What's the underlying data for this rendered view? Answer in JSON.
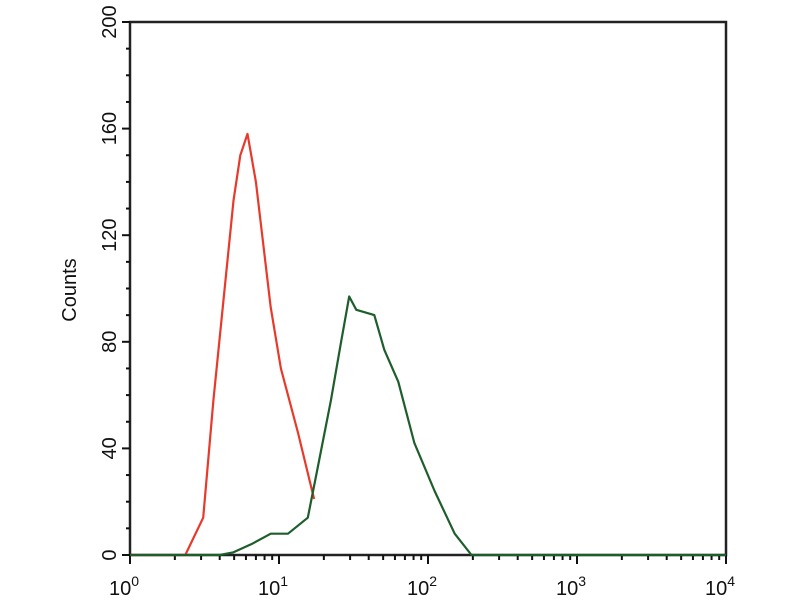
{
  "chart_data": {
    "type": "line",
    "title": "",
    "xlabel": "",
    "ylabel": "Counts",
    "x_scale": "log",
    "xlim": [
      1,
      10000
    ],
    "ylim": [
      0,
      200
    ],
    "grid": false,
    "y_ticks": [
      "0",
      "40",
      "80",
      "120",
      "160",
      "200"
    ],
    "x_ticks": [
      {
        "base": "10",
        "exp": "0"
      },
      {
        "base": "10",
        "exp": "1"
      },
      {
        "base": "10",
        "exp": "2"
      },
      {
        "base": "10",
        "exp": "3"
      },
      {
        "base": "10",
        "exp": "4"
      }
    ],
    "series": [
      {
        "color": "#e8392b",
        "points": [
          [
            1,
            0
          ],
          [
            2.35,
            0
          ],
          [
            3.1,
            14
          ],
          [
            3.63,
            58
          ],
          [
            4.95,
            133
          ],
          [
            5.5,
            150
          ],
          [
            6.15,
            158
          ],
          [
            7.0,
            140
          ],
          [
            8.8,
            93
          ],
          [
            10.3,
            70
          ],
          [
            13.4,
            46
          ],
          [
            17.2,
            21
          ]
        ]
      },
      {
        "color": "#1e5e2c",
        "points": [
          [
            1,
            0
          ],
          [
            4.0,
            0
          ],
          [
            4.95,
            1
          ],
          [
            6.5,
            4
          ],
          [
            8.8,
            8
          ],
          [
            11.5,
            8
          ],
          [
            15.6,
            14
          ],
          [
            18.2,
            33
          ],
          [
            22.3,
            58
          ],
          [
            26.1,
            80
          ],
          [
            29.6,
            97
          ],
          [
            33.0,
            92
          ],
          [
            43.6,
            90
          ],
          [
            50.9,
            77
          ],
          [
            63.2,
            65
          ],
          [
            81.1,
            42
          ],
          [
            110.7,
            24
          ],
          [
            151,
            8
          ],
          [
            196,
            0
          ],
          [
            10000,
            0
          ]
        ]
      }
    ]
  }
}
